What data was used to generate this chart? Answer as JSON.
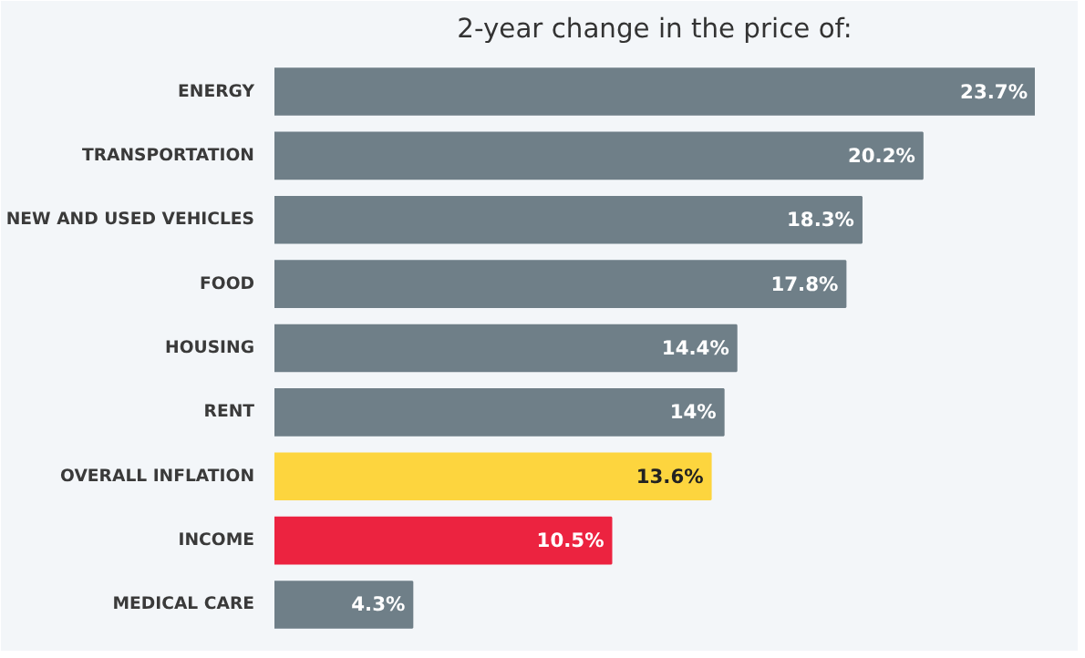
{
  "chart_data": {
    "type": "bar",
    "orientation": "horizontal",
    "title": "2-year change in the price of:",
    "categories": [
      "ENERGY",
      "TRANSPORTATION",
      "NEW AND USED VEHICLES",
      "FOOD",
      "HOUSING",
      "RENT",
      "OVERALL INFLATION",
      "INCOME",
      "MEDICAL CARE"
    ],
    "values": [
      23.7,
      20.2,
      18.3,
      17.8,
      14.4,
      14,
      13.6,
      10.5,
      4.3
    ],
    "value_labels": [
      "23.7%",
      "20.2%",
      "18.3%",
      "17.8%",
      "14.4%",
      "14%",
      "13.6%",
      "10.5%",
      "4.3%"
    ],
    "colors": [
      "#6f7f88",
      "#6f7f88",
      "#6f7f88",
      "#6f7f88",
      "#6f7f88",
      "#6f7f88",
      "#fdd53e",
      "#ec2340",
      "#6f7f88"
    ],
    "grid": false
  }
}
